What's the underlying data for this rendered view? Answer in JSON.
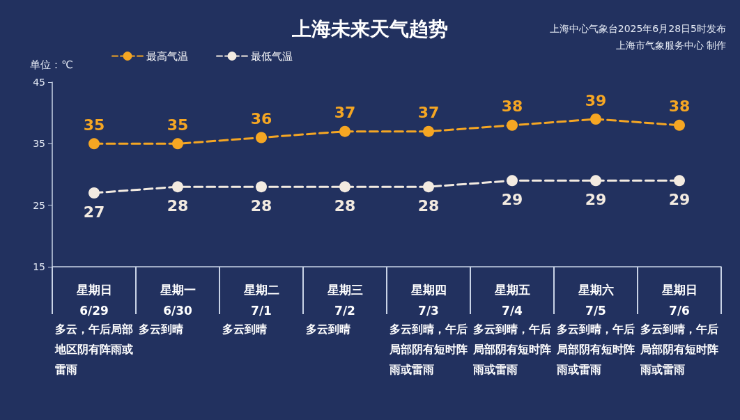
{
  "chart_data": {
    "type": "line",
    "title": "上海未来天气趋势",
    "ylabel": "单位：℃",
    "categories": [
      "星期日\n6/29",
      "星期一\n6/30",
      "星期二\n7/1",
      "星期三\n7/2",
      "星期四\n7/3",
      "星期五\n7/4",
      "星期六\n7/5",
      "星期日\n7/6"
    ],
    "series": [
      {
        "name": "最高气温",
        "color": "#f5a623",
        "values": [
          35,
          35,
          36,
          37,
          37,
          38,
          39,
          38
        ]
      },
      {
        "name": "最低气温",
        "color": "#f3ebe1",
        "values": [
          27,
          28,
          28,
          28,
          28,
          29,
          29,
          29
        ]
      }
    ],
    "ylim": [
      15,
      45
    ],
    "yticks": [
      15,
      25,
      35,
      45
    ],
    "grid": false,
    "legend": "top left",
    "marker": "circle",
    "line_style": "dashed",
    "data_labels": true,
    "annotations": [
      "上海中心气象台2025年6月28日5时发布",
      "上海市气象服务中心 制作",
      "多云，午后局部地区阴有阵雨或雷雨",
      "多云到晴",
      "多云到晴",
      "多云到晴",
      "多云到晴，午后局部阴有短时阵雨或雷雨",
      "多云到晴，午后局部阴有短时阵雨或雷雨",
      "多云到晴，午后局部阴有短时阵雨或雷雨",
      "多云到晴，午后局部阴有短时阵雨或雷雨"
    ]
  }
}
